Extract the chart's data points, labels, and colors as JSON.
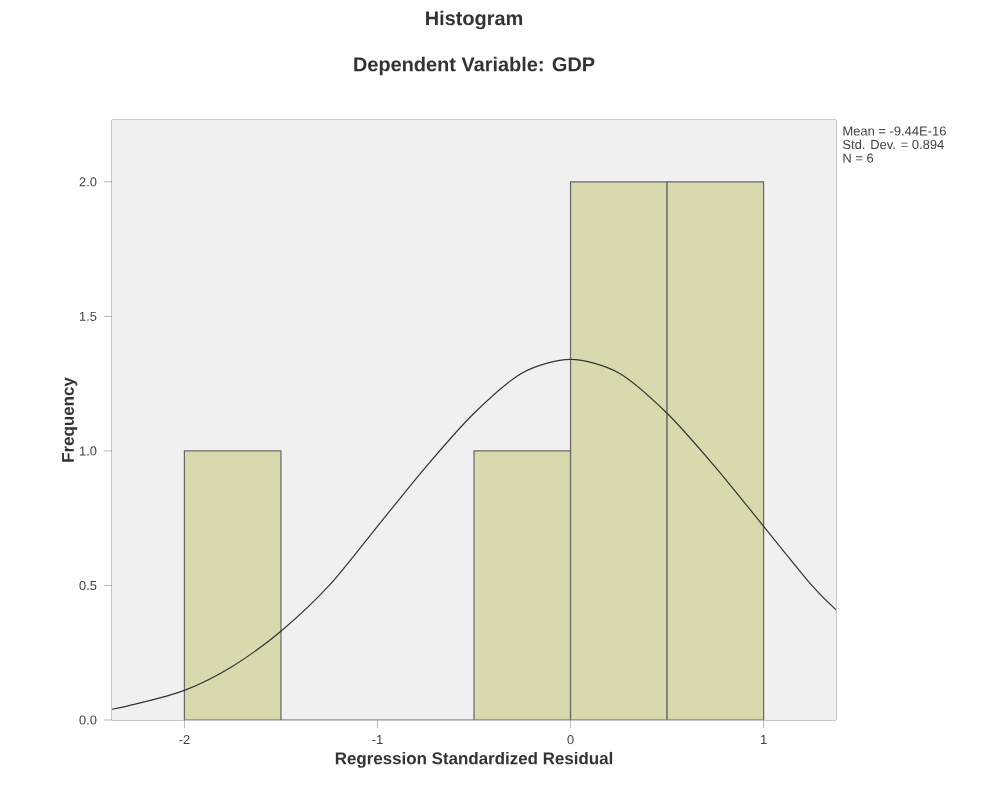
{
  "chart_data": {
    "type": "histogram",
    "title": "Histogram",
    "subtitle": "Dependent Variable: GDP",
    "xlabel": "Regression Standardized Residual",
    "ylabel": "Frequency",
    "bins": [
      -2,
      -1.5,
      -1,
      -0.5,
      0,
      0.5,
      1
    ],
    "series": [
      {
        "color": "#dad9ae",
        "values": [
          1,
          0,
          0,
          1,
          2,
          2
        ]
      },
      {
        "type": "line",
        "color": "#333333",
        "x": [
          -2.375,
          -2.25,
          -2,
          -1.75,
          -1.5,
          -1.25,
          -1,
          -0.75,
          -0.5,
          -0.25,
          0,
          0.25,
          0.5,
          0.75,
          1,
          1.25,
          1.375
        ],
        "values": [
          0.04,
          0.06,
          0.11,
          0.2,
          0.33,
          0.5,
          0.72,
          0.94,
          1.14,
          1.29,
          1.34,
          1.29,
          1.14,
          0.94,
          0.72,
          0.5,
          0.41
        ]
      }
    ],
    "xlim": [
      -2.375,
      1.375
    ],
    "ylim": [
      0,
      2.23
    ],
    "xticks": [
      -2,
      -1,
      0,
      1
    ],
    "yticks": [
      {
        "value": 0,
        "label": "0.0"
      },
      {
        "value": 0.5,
        "label": "0.5"
      },
      {
        "value": 1,
        "label": "1.0"
      },
      {
        "value": 1.5,
        "label": "1.5"
      },
      {
        "value": 2,
        "label": "2.0"
      }
    ],
    "annotations": [
      "Mean = -9.44E-16",
      "Std. Dev. = 0.894",
      "N = 6"
    ],
    "grid": false,
    "marker": "none",
    "line_style": "solid"
  }
}
